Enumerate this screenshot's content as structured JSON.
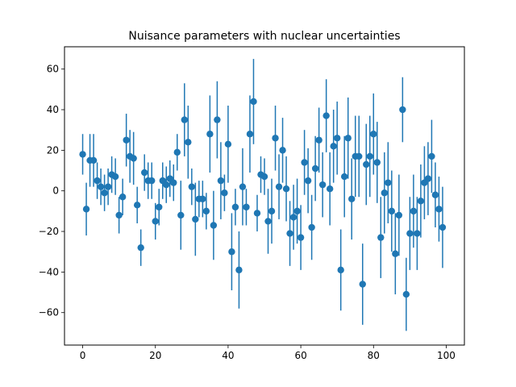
{
  "chart_data": {
    "type": "scatter",
    "title": "Nuisance parameters with nuclear uncertainties",
    "xlabel": "",
    "ylabel": "",
    "xlim": [
      -5,
      105
    ],
    "ylim": [
      -76,
      71
    ],
    "x_ticks": [
      0,
      20,
      40,
      60,
      80,
      100
    ],
    "y_ticks": [
      -60,
      -40,
      -20,
      0,
      20,
      40,
      60
    ],
    "grid": false,
    "marker_color": "#1f77b4",
    "series": [
      {
        "x": [
          0,
          1,
          2,
          3,
          4,
          5,
          6,
          7,
          8,
          9,
          10,
          11,
          12,
          13,
          14,
          15,
          16,
          17,
          18,
          19,
          20,
          21,
          22,
          23,
          24,
          25,
          26,
          27,
          28,
          29,
          30,
          31,
          32,
          33,
          34,
          35,
          36,
          37,
          38,
          39,
          40,
          41,
          42,
          43,
          44,
          45,
          46,
          47,
          48,
          49,
          50,
          51,
          52,
          53,
          54,
          55,
          56,
          57,
          58,
          59,
          60,
          61,
          62,
          63,
          64,
          65,
          66,
          67,
          68,
          69,
          70,
          71,
          72,
          73,
          74,
          75,
          76,
          77,
          78,
          79,
          80,
          81,
          82,
          83,
          84,
          85,
          86,
          87,
          88,
          89,
          90,
          91,
          92,
          93,
          94,
          95,
          96,
          97,
          98,
          99
        ],
        "y": [
          18,
          -9,
          15,
          15,
          5,
          2,
          -1,
          2,
          8,
          7,
          -12,
          -3,
          25,
          17,
          16,
          -7,
          -28,
          9,
          5,
          5,
          -15,
          -8,
          5,
          3,
          6,
          4,
          19,
          -12,
          35,
          24,
          2,
          -14,
          -4,
          -4,
          -10,
          28,
          -17,
          35,
          5,
          -1,
          23,
          -30,
          -8,
          -39,
          2,
          -8,
          28,
          44,
          -11,
          8,
          7,
          -15,
          -10,
          26,
          2,
          20,
          1,
          -21,
          -13,
          -10,
          -23,
          14,
          5,
          -18,
          11,
          25,
          3,
          37,
          1,
          22,
          26,
          -39,
          7,
          26,
          -4,
          17,
          17,
          -46,
          13,
          17,
          28,
          14,
          -23,
          -1,
          4,
          -10,
          -31,
          -12,
          40,
          -51,
          -21,
          -10,
          -21,
          -5,
          4,
          6,
          17,
          -2,
          -9,
          -18
        ],
        "err": [
          10,
          13,
          13,
          13,
          9,
          9,
          9,
          9,
          9,
          9,
          9,
          9,
          13,
          13,
          13,
          9,
          9,
          9,
          9,
          9,
          9,
          9,
          9,
          9,
          9,
          9,
          9,
          17,
          18,
          18,
          9,
          18,
          9,
          9,
          9,
          19,
          17,
          19,
          19,
          9,
          19,
          19,
          9,
          19,
          19,
          9,
          19,
          21,
          9,
          9,
          9,
          16,
          16,
          16,
          16,
          16,
          16,
          16,
          16,
          16,
          16,
          16,
          16,
          16,
          16,
          16,
          16,
          18,
          18,
          18,
          18,
          20,
          20,
          20,
          20,
          20,
          20,
          20,
          20,
          20,
          20,
          20,
          20,
          20,
          20,
          20,
          20,
          20,
          16,
          18,
          18,
          18,
          18,
          18,
          18,
          18,
          18,
          16,
          16,
          20
        ]
      }
    ]
  }
}
